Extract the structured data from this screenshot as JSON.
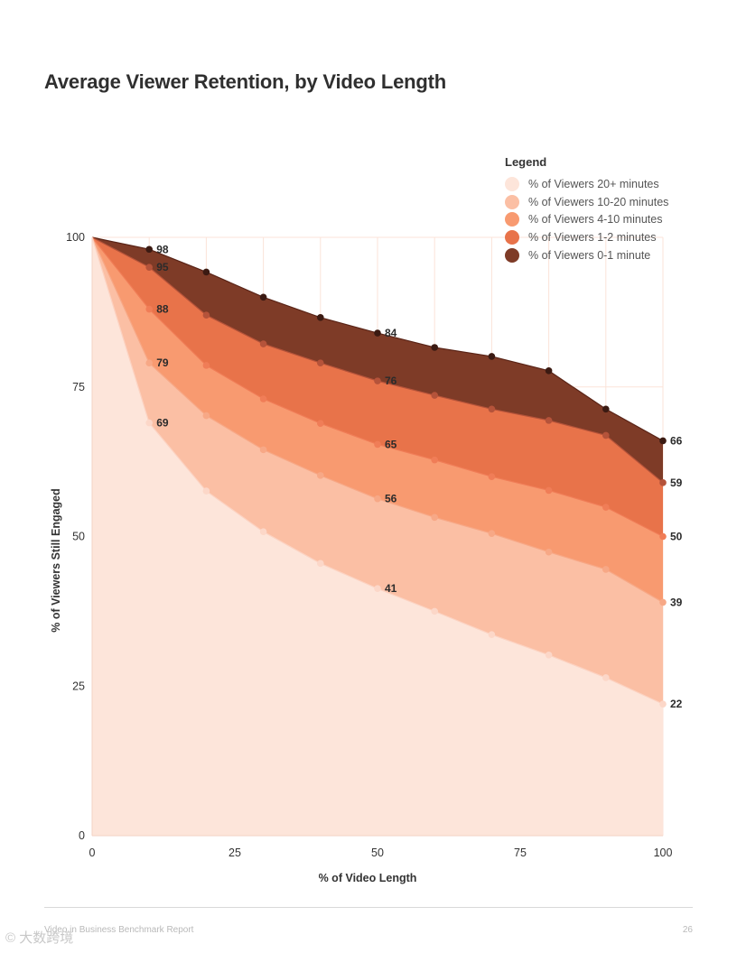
{
  "page": {
    "title": "Average Viewer Retention, by Video Length",
    "footer_left": "Video in Business Benchmark Report",
    "footer_right": "26",
    "watermark": "© 大数跨境"
  },
  "legend": {
    "title": "Legend",
    "items": [
      {
        "label": "% of Viewers 20+ minutes",
        "color": "#fde5da"
      },
      {
        "label": "% of Viewers 10-20 minutes",
        "color": "#fbbfa4"
      },
      {
        "label": "% of Viewers 4-10 minutes",
        "color": "#f89a70"
      },
      {
        "label": "% of Viewers 1-2 minutes",
        "color": "#e8734a"
      },
      {
        "label": "% of Viewers 0-1 minute",
        "color": "#7e3b27"
      }
    ]
  },
  "chart_data": {
    "type": "area",
    "title": "Average Viewer Retention, by Video Length",
    "xlabel": "% of Video Length",
    "ylabel": "% of Viewers Still Engaged",
    "xlim": [
      0,
      100
    ],
    "ylim": [
      0,
      100
    ],
    "xticks": [
      0,
      25,
      50,
      75,
      100
    ],
    "yticks": [
      0,
      25,
      50,
      75,
      100
    ],
    "x": [
      0,
      10,
      20,
      30,
      40,
      50,
      60,
      70,
      80,
      90,
      100
    ],
    "series": [
      {
        "name": "% of Viewers 0-1 minute",
        "color": "#7e3b27",
        "line": "#5a2417",
        "point": "#3b1a12",
        "values": [
          100,
          98,
          94.2,
          90,
          86.6,
          84,
          81.6,
          80.1,
          77.7,
          71.3,
          66
        ],
        "labels": {
          "1": "98",
          "5": "84",
          "10": "66"
        }
      },
      {
        "name": "% of Viewers 1-2 minutes",
        "color": "#e8734a",
        "line": "#b5533a",
        "point": "#b5533a",
        "values": [
          100,
          95,
          87,
          82.2,
          79,
          76,
          73.6,
          71.3,
          69.4,
          66.9,
          59
        ],
        "labels": {
          "1": "95",
          "5": "76",
          "10": "59"
        }
      },
      {
        "name": "% of Viewers 4-10 minutes",
        "color": "#f89a70",
        "line": "#f07d57",
        "point": "#f07d57",
        "values": [
          100,
          88,
          78.6,
          73,
          68.9,
          65.4,
          62.8,
          60,
          57.7,
          54.9,
          50
        ],
        "labels": {
          "1": "88",
          "5": "65",
          "10": "50"
        }
      },
      {
        "name": "% of Viewers 10-20 minutes",
        "color": "#fbbfa4",
        "line": "#f7a886",
        "point": "#f7a886",
        "values": [
          100,
          79,
          70.2,
          64.5,
          60.2,
          56.3,
          53.2,
          50.5,
          47.4,
          44.5,
          39
        ],
        "labels": {
          "1": "79",
          "5": "56",
          "10": "39"
        }
      },
      {
        "name": "% of Viewers 20+ minutes",
        "color": "#fde5da",
        "line": "#fcd2c1",
        "point": "#fcd7c8",
        "values": [
          100,
          69,
          57.6,
          50.8,
          45.5,
          41.3,
          37.5,
          33.6,
          30.2,
          26.4,
          22
        ],
        "labels": {
          "1": "69",
          "5": "41",
          "10": "22"
        }
      }
    ]
  }
}
